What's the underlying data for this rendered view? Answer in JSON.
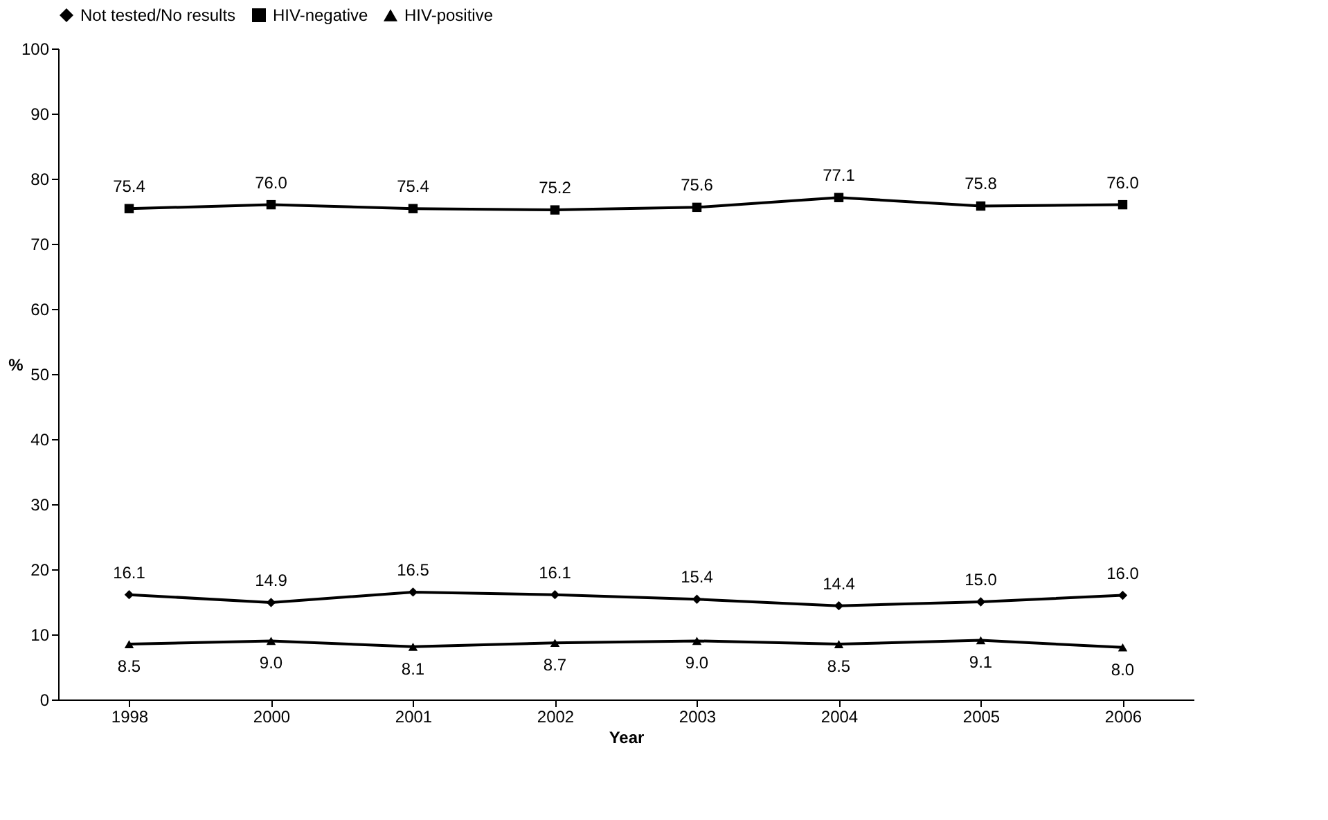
{
  "chart_data": {
    "type": "line",
    "xlabel": "Year",
    "ylabel": "%",
    "categories": [
      "1998",
      "2000",
      "2001",
      "2002",
      "2003",
      "2004",
      "2005",
      "2006"
    ],
    "series": [
      {
        "name": "Not tested/No results",
        "color": "#000000",
        "marker": "diamond",
        "values": [
          16.1,
          14.9,
          16.5,
          16.1,
          15.4,
          14.4,
          15.0,
          16.0
        ],
        "value_labels": [
          "16.1",
          "14.9",
          "16.5",
          "16.1",
          "15.4",
          "14.4",
          "15.0",
          "16.0"
        ]
      },
      {
        "name": "HIV-negative",
        "color": "#000000",
        "marker": "square",
        "values": [
          75.4,
          76.0,
          75.4,
          75.2,
          75.6,
          77.1,
          75.8,
          76.0
        ],
        "value_labels": [
          "75.4",
          "76.0",
          "75.4",
          "75.2",
          "75.6",
          "77.1",
          "75.8",
          "76.0"
        ]
      },
      {
        "name": "HIV-positive",
        "color": "#000000",
        "marker": "triangle",
        "values": [
          8.5,
          9.0,
          8.1,
          8.7,
          9.0,
          8.5,
          9.1,
          8.0
        ],
        "value_labels": [
          "8.5",
          "9.0",
          "8.1",
          "8.7",
          "9.0",
          "8.5",
          "9.1",
          "8.0"
        ]
      }
    ],
    "ylim": [
      0,
      100
    ],
    "yticks": [
      0,
      10,
      20,
      30,
      40,
      50,
      60,
      70,
      80,
      90,
      100
    ],
    "grid": false,
    "legend": "top",
    "line_style": "solid"
  }
}
